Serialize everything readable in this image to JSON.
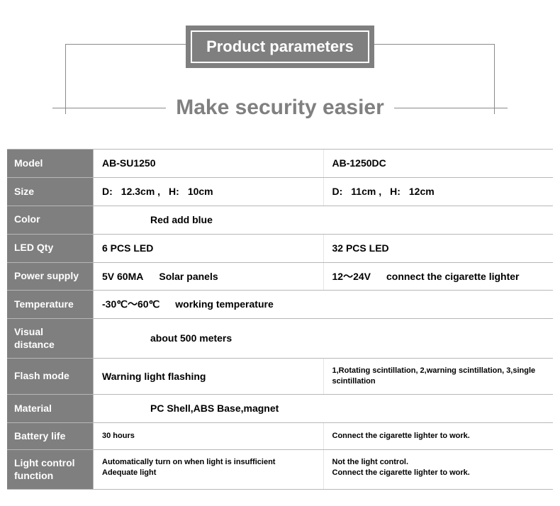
{
  "header": {
    "title": "Product parameters",
    "tagline": "Make security easier"
  },
  "label_bg": "#7f7f7f",
  "rows": [
    {
      "label": "Model",
      "type": "two",
      "left": "AB-SU1250",
      "right": "AB-1250DC"
    },
    {
      "label": "Size",
      "type": "size",
      "left_d_label": "D:",
      "left_d": "12.3cm ,",
      "left_h_label": "H:",
      "left_h": "10cm",
      "right_d_label": "D:",
      "right_d": "11cm ,",
      "right_h_label": "H:",
      "right_h": "12cm"
    },
    {
      "label": "Color",
      "type": "one",
      "value": "Red add blue"
    },
    {
      "label": "LED Qty",
      "type": "two",
      "left": "6 PCS LED",
      "right": "32 PCS LED"
    },
    {
      "label": "Power supply",
      "type": "power",
      "left_main": "5V 60MA",
      "left_note": "Solar panels",
      "right_main": "12～24V",
      "right_note": "connect the cigarette lighter"
    },
    {
      "label": "Temperature",
      "type": "temp",
      "value": "-30℃～60℃",
      "note": "working temperature"
    },
    {
      "label": "Visual distance",
      "type": "one",
      "value": "about 500 meters"
    },
    {
      "label": "Flash mode",
      "type": "two",
      "left": "Warning light flashing",
      "right": "1,Rotating scintillation, 2,warning scintillation, 3,single scintillation",
      "right_small": true
    },
    {
      "label": "Material",
      "type": "one",
      "value": "PC Shell,ABS Base,magnet"
    },
    {
      "label": "Battery life",
      "type": "two",
      "left": "30 hours",
      "right": "Connect the cigarette lighter to work.",
      "left_small": true,
      "right_small": true
    },
    {
      "label": "Light control function",
      "type": "multi",
      "left_lines": [
        "Automatically turn on when light is insufficient",
        "Adequate light"
      ],
      "right_lines": [
        "Not the light control.",
        "Connect the cigarette lighter to work."
      ]
    }
  ]
}
